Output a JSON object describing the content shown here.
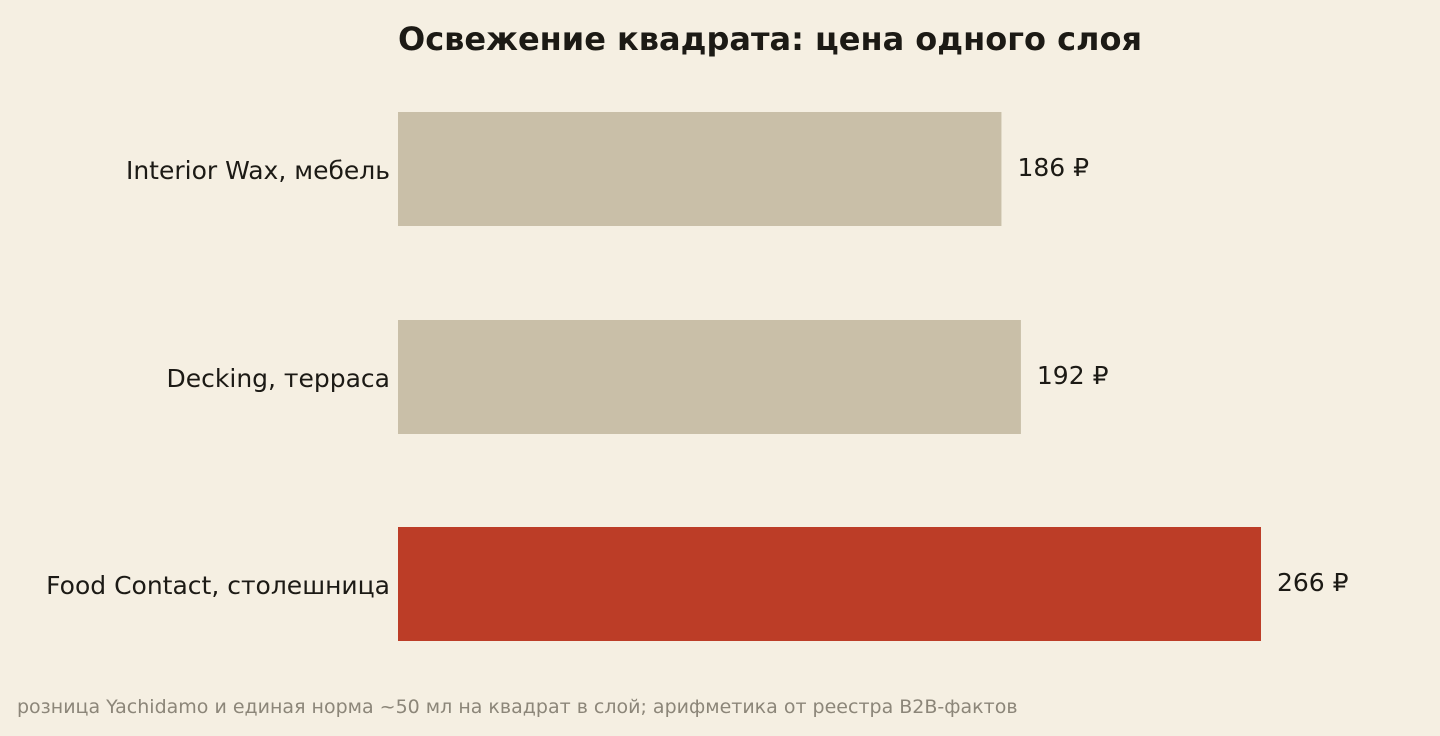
{
  "chart_data": {
    "type": "bar",
    "orientation": "horizontal",
    "title": "Освежение квадрата: цена одного слоя",
    "xlabel": "",
    "ylabel": "",
    "categories": [
      "Interior Wax, мебель",
      "Decking, терраса",
      "Food Contact, столешница"
    ],
    "values": [
      186,
      192,
      266
    ],
    "value_labels": [
      "186 ₽",
      "192 ₽",
      "266 ₽"
    ],
    "unit": "₽",
    "xlim": [
      0,
      266
    ],
    "grid": false,
    "legend": "none",
    "highlight_index": 2
  },
  "colors": {
    "background": "#f5efe2",
    "bar_default": "#c9bfa8",
    "bar_highlight": "#bc3d27",
    "text": "#1c1a15",
    "footnote": "#8c8679"
  },
  "footnote": "розница Yachidamo и единая норма ~50 мл на квадрат в слой; арифметика от реестра B2B-фактов"
}
